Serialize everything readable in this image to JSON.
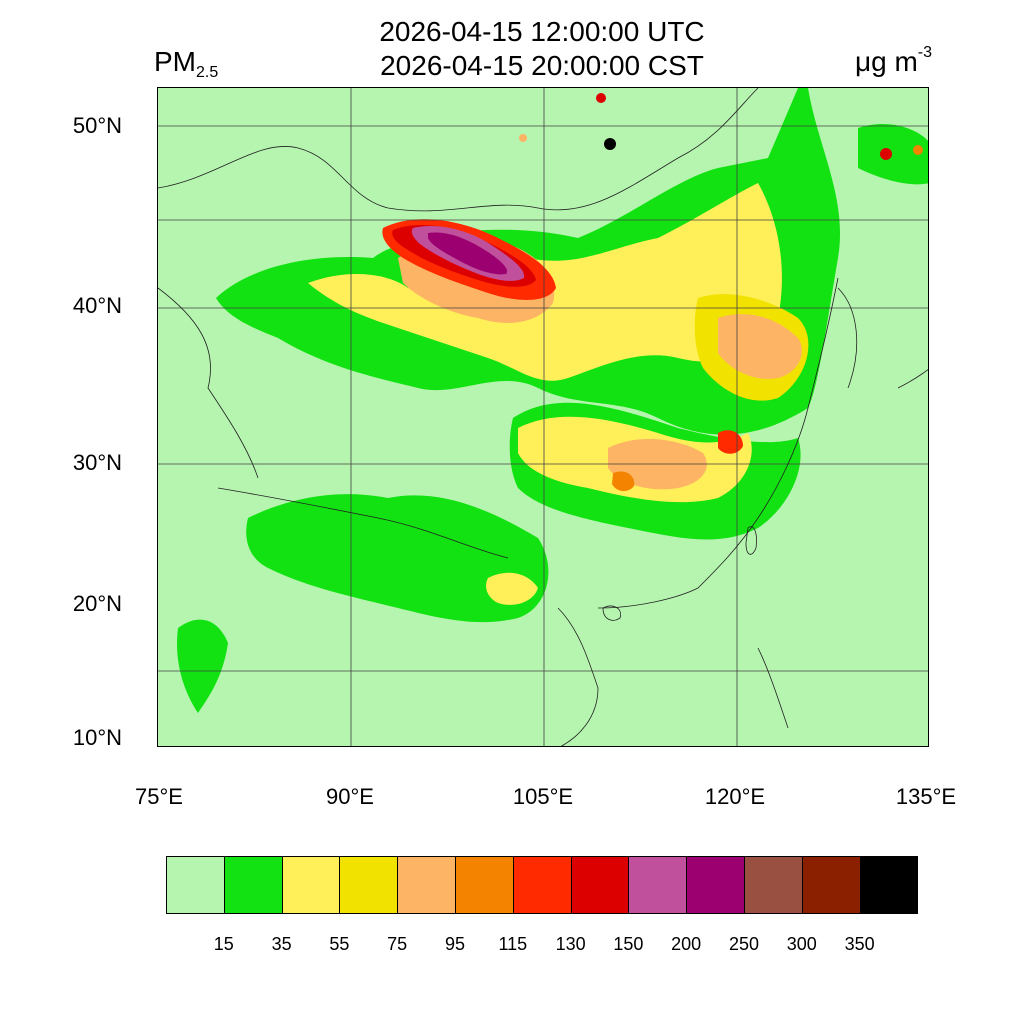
{
  "title": {
    "line1": "2026-04-15 12:00:00 UTC",
    "line2": "2026-04-15 20:00:00 CST"
  },
  "variable": {
    "name": "PM",
    "subscript": "2.5"
  },
  "unit": {
    "base": "μg m",
    "exponent": "-3"
  },
  "map": {
    "background_color": "#b6f5b0",
    "lat_labels": [
      "50°N",
      "40°N",
      "30°N",
      "20°N",
      "10°N"
    ],
    "lon_labels": [
      "75°E",
      "90°E",
      "105°E",
      "120°E",
      "135°E"
    ]
  },
  "legend": {
    "colors": [
      "#b6f5b0",
      "#12e212",
      "#fff05a",
      "#f2e200",
      "#fdb464",
      "#f48300",
      "#ff2a00",
      "#dd0000",
      "#c0509c",
      "#9c0070",
      "#9a5040",
      "#8a2000",
      "#000000"
    ],
    "ticks": [
      "15",
      "35",
      "55",
      "75",
      "95",
      "115",
      "130",
      "150",
      "200",
      "250",
      "300",
      "350"
    ]
  }
}
